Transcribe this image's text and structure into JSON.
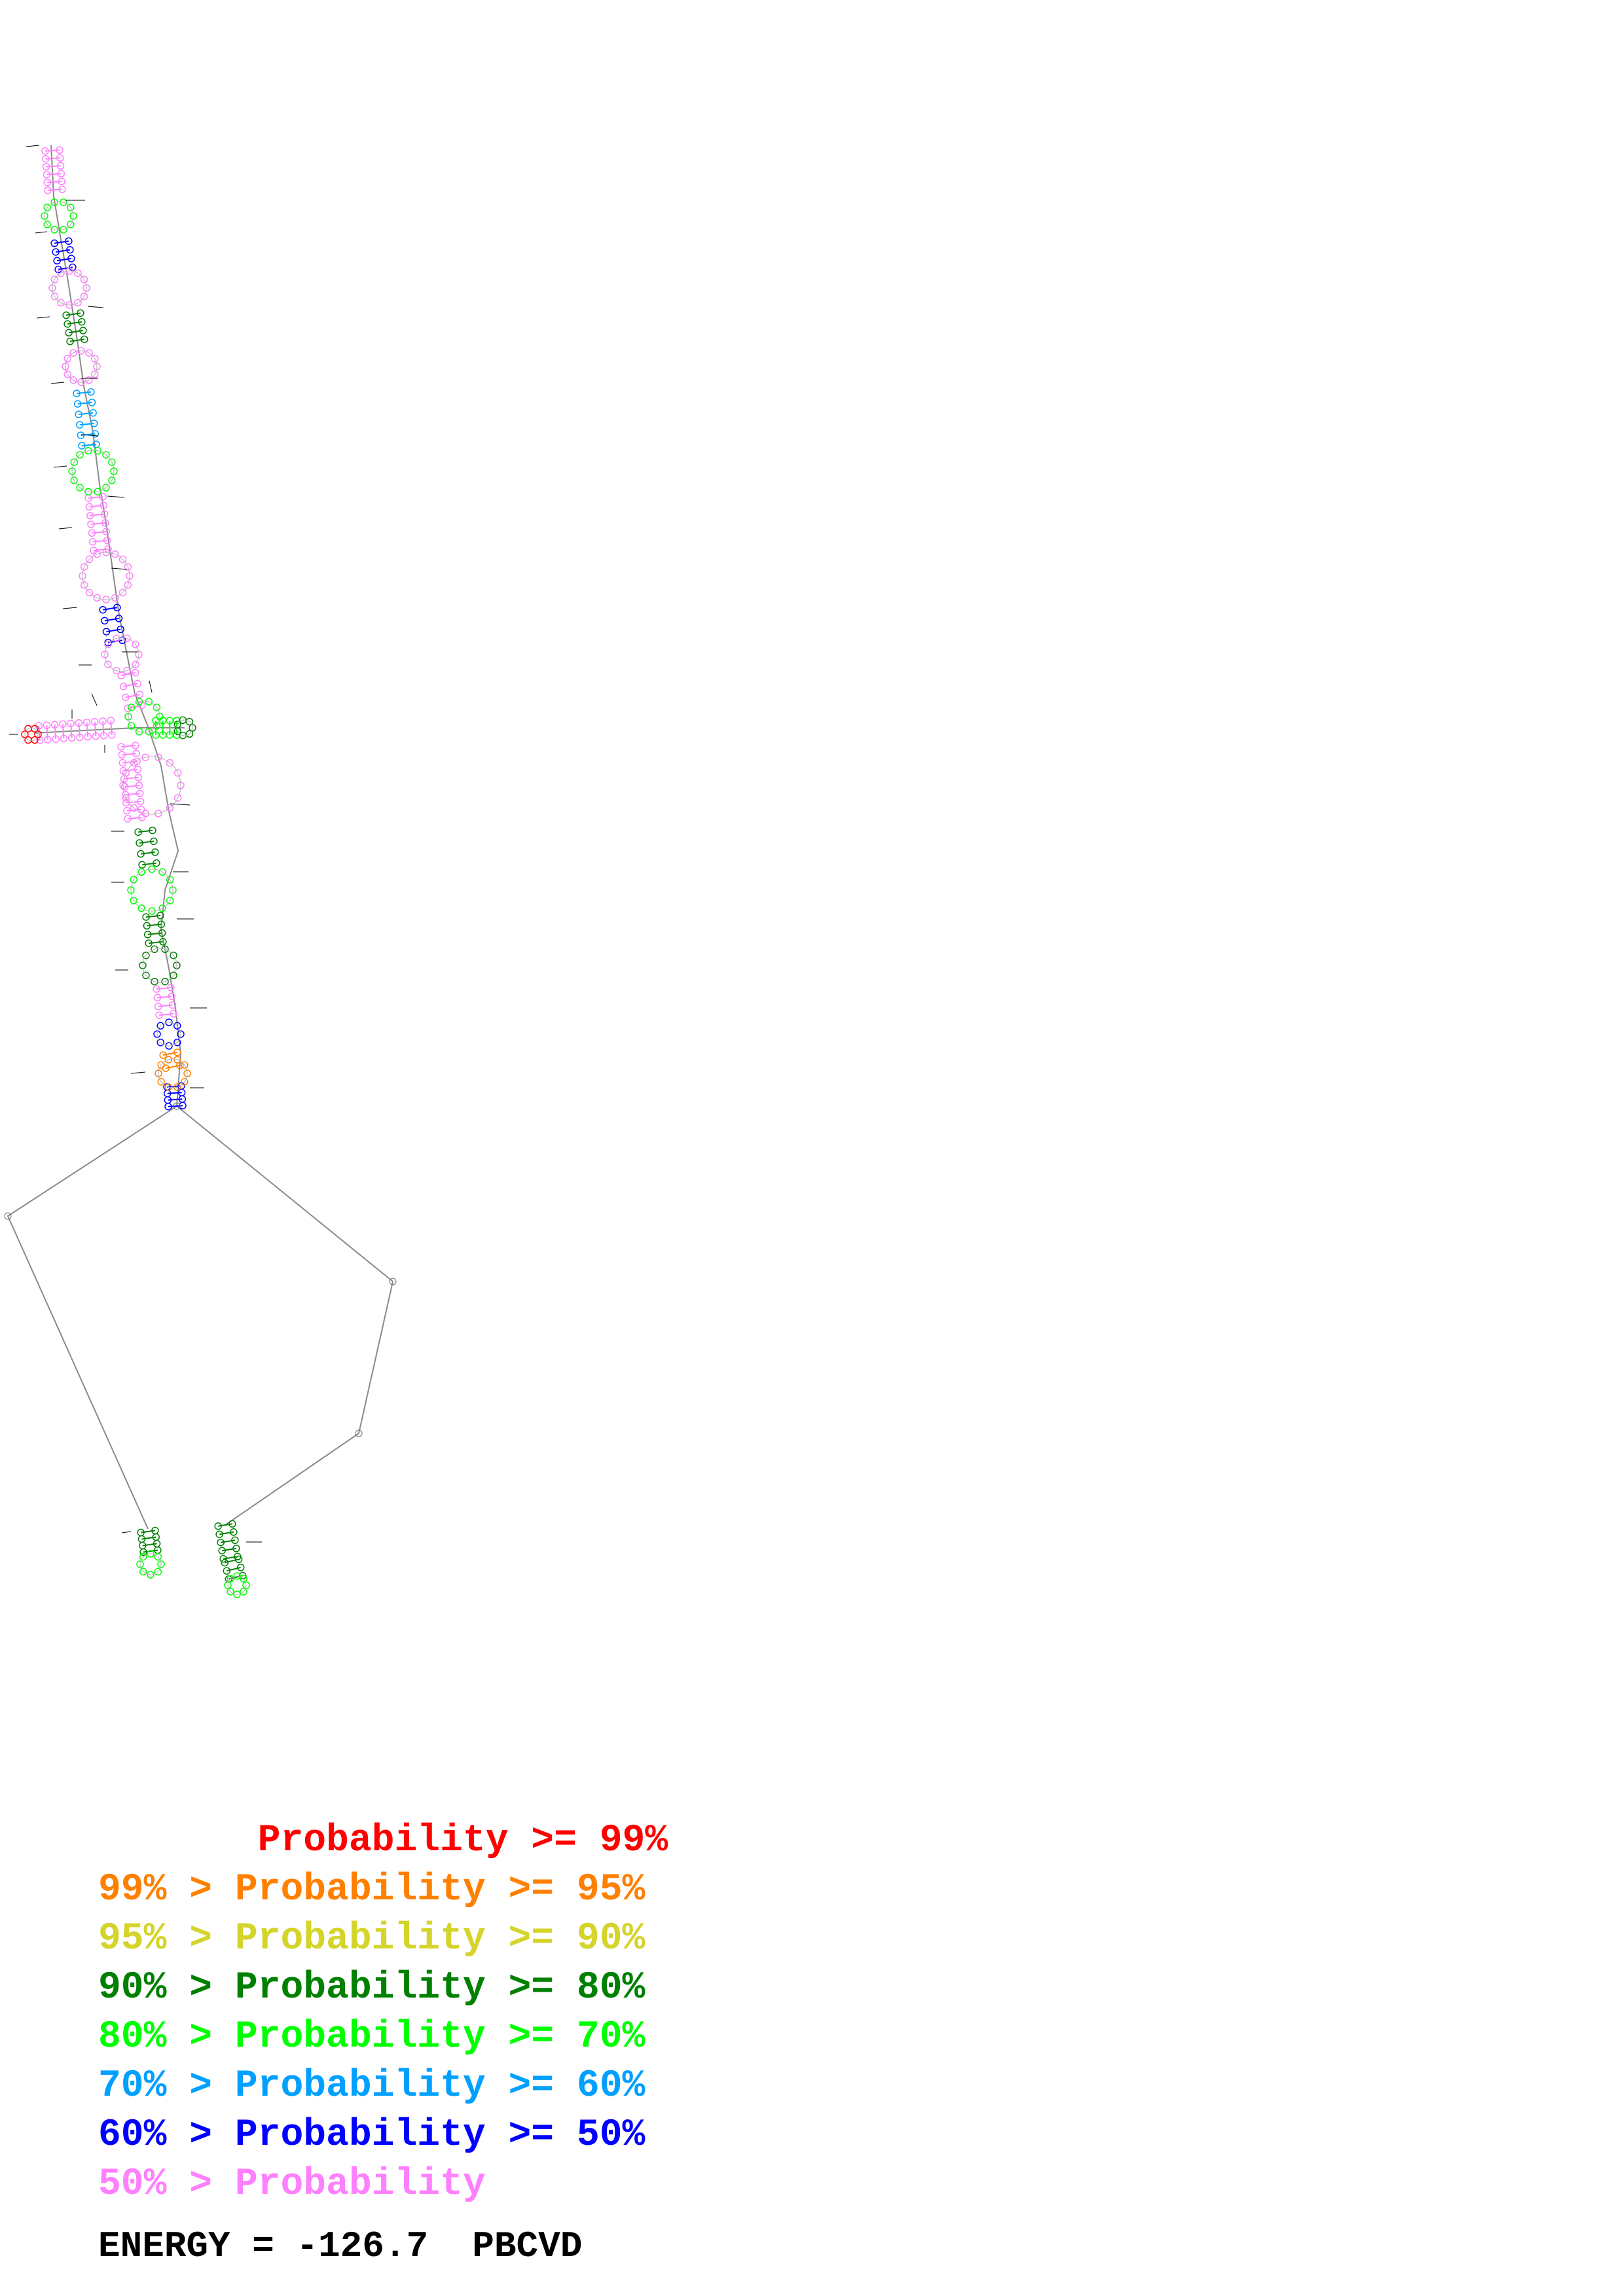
{
  "legend": {
    "rows": [
      {
        "text": "       Probability >= 99%",
        "color": "#ff0000"
      },
      {
        "text": "99% > Probability >= 95%",
        "color": "#ff8000"
      },
      {
        "text": "95% > Probability >= 90%",
        "color": "#d4d42a"
      },
      {
        "text": "90% > Probability >= 80%",
        "color": "#008000"
      },
      {
        "text": "80% > Probability >= 70%",
        "color": "#00ff00"
      },
      {
        "text": "70% > Probability >= 60%",
        "color": "#00a0ff"
      },
      {
        "text": "60% > Probability >= 50%",
        "color": "#0000ff"
      },
      {
        "text": "50% > Probability",
        "color": "#ff80ff"
      }
    ]
  },
  "footer": {
    "energy_label": "ENERGY = -126.7  PBCVD"
  }
}
